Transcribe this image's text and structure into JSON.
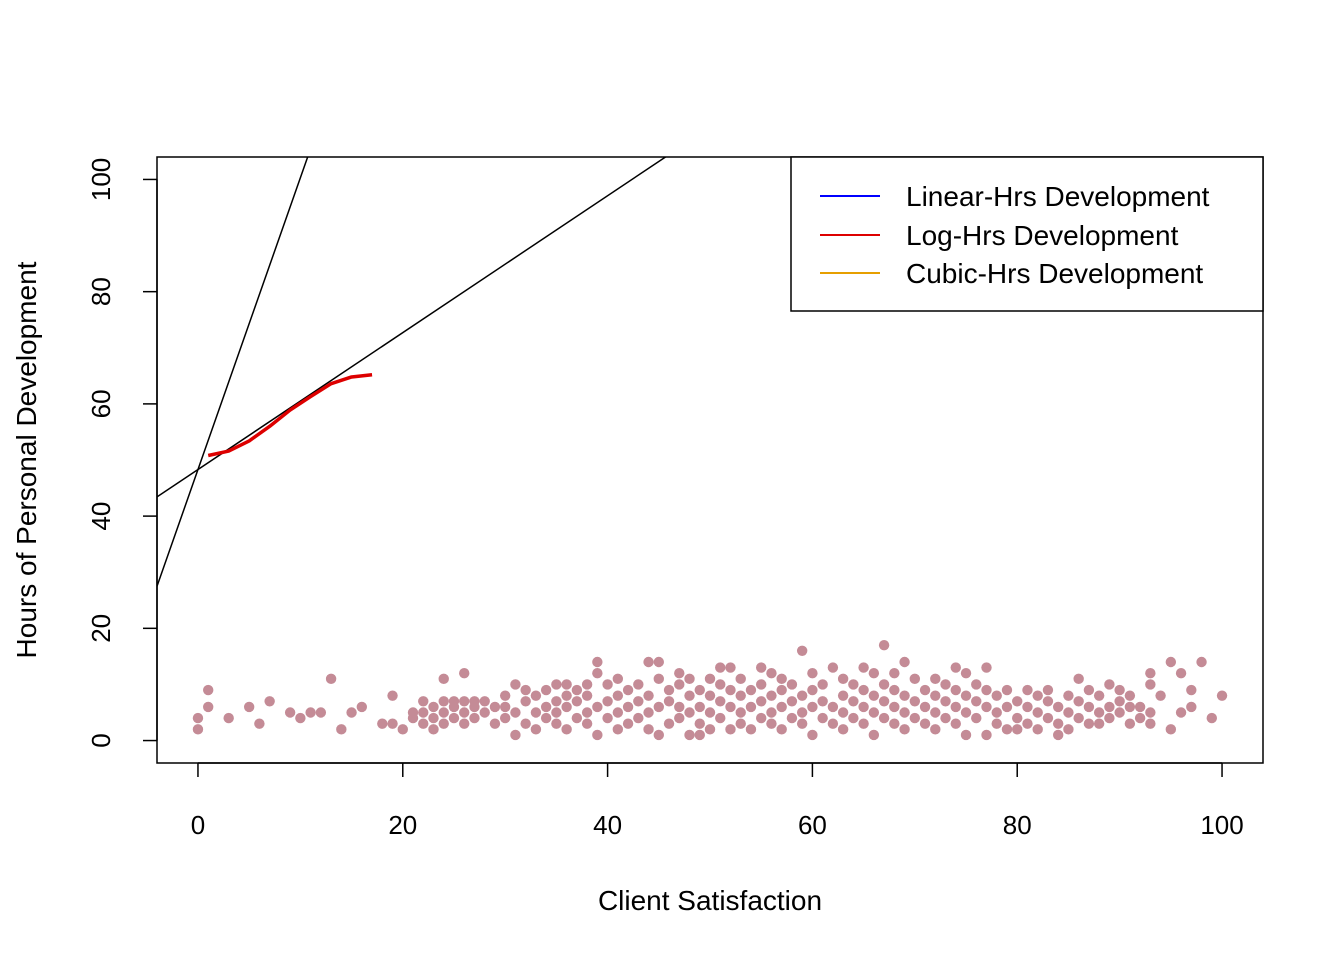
{
  "chart_data": {
    "type": "scatter",
    "xlabel": "Client Satisfaction",
    "ylabel": "Hours of Personal Development",
    "xlim": [
      -4,
      104
    ],
    "ylim": [
      -4,
      104
    ],
    "xticks": [
      0,
      20,
      40,
      60,
      80,
      100
    ],
    "yticks": [
      0,
      20,
      40,
      60,
      80,
      100
    ],
    "grid": false,
    "point_color": "#c48b96",
    "points_note": "dense cloud of several hundred observations; representative sample below",
    "points": [
      [
        0,
        2
      ],
      [
        0,
        4
      ],
      [
        1,
        6
      ],
      [
        1,
        9
      ],
      [
        3,
        4
      ],
      [
        5,
        6
      ],
      [
        6,
        3
      ],
      [
        7,
        7
      ],
      [
        9,
        5
      ],
      [
        10,
        4
      ],
      [
        11,
        5
      ],
      [
        12,
        5
      ],
      [
        13,
        11
      ],
      [
        14,
        2
      ],
      [
        15,
        5
      ],
      [
        16,
        6
      ],
      [
        18,
        3
      ],
      [
        19,
        3
      ],
      [
        19,
        8
      ],
      [
        20,
        2
      ],
      [
        21,
        4
      ],
      [
        21,
        5
      ],
      [
        22,
        3
      ],
      [
        22,
        5
      ],
      [
        22,
        7
      ],
      [
        23,
        2
      ],
      [
        23,
        4
      ],
      [
        23,
        6
      ],
      [
        24,
        3
      ],
      [
        24,
        5
      ],
      [
        24,
        7
      ],
      [
        24,
        11
      ],
      [
        25,
        4
      ],
      [
        25,
        6
      ],
      [
        25,
        7
      ],
      [
        26,
        3
      ],
      [
        26,
        5
      ],
      [
        26,
        7
      ],
      [
        26,
        12
      ],
      [
        27,
        4
      ],
      [
        27,
        6
      ],
      [
        27,
        7
      ],
      [
        28,
        5
      ],
      [
        28,
        7
      ],
      [
        29,
        3
      ],
      [
        29,
        6
      ],
      [
        30,
        4
      ],
      [
        30,
        6
      ],
      [
        30,
        8
      ],
      [
        31,
        1
      ],
      [
        31,
        5
      ],
      [
        31,
        10
      ],
      [
        32,
        3
      ],
      [
        32,
        7
      ],
      [
        32,
        9
      ],
      [
        33,
        2
      ],
      [
        33,
        5
      ],
      [
        33,
        8
      ],
      [
        34,
        4
      ],
      [
        34,
        6
      ],
      [
        34,
        9
      ],
      [
        35,
        3
      ],
      [
        35,
        5
      ],
      [
        35,
        7
      ],
      [
        35,
        10
      ],
      [
        36,
        2
      ],
      [
        36,
        6
      ],
      [
        36,
        8
      ],
      [
        36,
        10
      ],
      [
        37,
        4
      ],
      [
        37,
        7
      ],
      [
        37,
        9
      ],
      [
        38,
        3
      ],
      [
        38,
        5
      ],
      [
        38,
        8
      ],
      [
        38,
        10
      ],
      [
        39,
        1
      ],
      [
        39,
        6
      ],
      [
        39,
        12
      ],
      [
        39,
        14
      ],
      [
        40,
        4
      ],
      [
        40,
        7
      ],
      [
        40,
        10
      ],
      [
        41,
        2
      ],
      [
        41,
        5
      ],
      [
        41,
        8
      ],
      [
        41,
        11
      ],
      [
        42,
        3
      ],
      [
        42,
        6
      ],
      [
        42,
        9
      ],
      [
        43,
        4
      ],
      [
        43,
        7
      ],
      [
        43,
        10
      ],
      [
        44,
        2
      ],
      [
        44,
        5
      ],
      [
        44,
        8
      ],
      [
        44,
        14
      ],
      [
        45,
        1
      ],
      [
        45,
        6
      ],
      [
        45,
        11
      ],
      [
        45,
        14
      ],
      [
        46,
        3
      ],
      [
        46,
        7
      ],
      [
        46,
        9
      ],
      [
        47,
        4
      ],
      [
        47,
        6
      ],
      [
        47,
        10
      ],
      [
        47,
        12
      ],
      [
        48,
        1
      ],
      [
        48,
        5
      ],
      [
        48,
        8
      ],
      [
        48,
        11
      ],
      [
        49,
        1
      ],
      [
        49,
        3
      ],
      [
        49,
        6
      ],
      [
        49,
        9
      ],
      [
        50,
        2
      ],
      [
        50,
        5
      ],
      [
        50,
        8
      ],
      [
        50,
        11
      ],
      [
        51,
        4
      ],
      [
        51,
        7
      ],
      [
        51,
        10
      ],
      [
        51,
        13
      ],
      [
        52,
        2
      ],
      [
        52,
        6
      ],
      [
        52,
        9
      ],
      [
        52,
        13
      ],
      [
        53,
        3
      ],
      [
        53,
        5
      ],
      [
        53,
        8
      ],
      [
        53,
        11
      ],
      [
        54,
        2
      ],
      [
        54,
        6
      ],
      [
        54,
        9
      ],
      [
        55,
        4
      ],
      [
        55,
        7
      ],
      [
        55,
        10
      ],
      [
        55,
        13
      ],
      [
        56,
        3
      ],
      [
        56,
        5
      ],
      [
        56,
        8
      ],
      [
        56,
        12
      ],
      [
        57,
        2
      ],
      [
        57,
        6
      ],
      [
        57,
        9
      ],
      [
        57,
        11
      ],
      [
        58,
        4
      ],
      [
        58,
        7
      ],
      [
        58,
        10
      ],
      [
        59,
        3
      ],
      [
        59,
        5
      ],
      [
        59,
        8
      ],
      [
        59,
        16
      ],
      [
        60,
        1
      ],
      [
        60,
        6
      ],
      [
        60,
        9
      ],
      [
        60,
        12
      ],
      [
        61,
        4
      ],
      [
        61,
        7
      ],
      [
        61,
        10
      ],
      [
        62,
        3
      ],
      [
        62,
        6
      ],
      [
        62,
        13
      ],
      [
        63,
        2
      ],
      [
        63,
        5
      ],
      [
        63,
        8
      ],
      [
        63,
        11
      ],
      [
        64,
        4
      ],
      [
        64,
        7
      ],
      [
        64,
        10
      ],
      [
        65,
        3
      ],
      [
        65,
        6
      ],
      [
        65,
        9
      ],
      [
        65,
        13
      ],
      [
        66,
        1
      ],
      [
        66,
        5
      ],
      [
        66,
        8
      ],
      [
        66,
        12
      ],
      [
        67,
        4
      ],
      [
        67,
        7
      ],
      [
        67,
        10
      ],
      [
        67,
        17
      ],
      [
        68,
        3
      ],
      [
        68,
        6
      ],
      [
        68,
        9
      ],
      [
        68,
        12
      ],
      [
        69,
        2
      ],
      [
        69,
        5
      ],
      [
        69,
        8
      ],
      [
        69,
        14
      ],
      [
        70,
        4
      ],
      [
        70,
        7
      ],
      [
        70,
        11
      ],
      [
        71,
        3
      ],
      [
        71,
        6
      ],
      [
        71,
        9
      ],
      [
        72,
        2
      ],
      [
        72,
        5
      ],
      [
        72,
        8
      ],
      [
        72,
        11
      ],
      [
        73,
        4
      ],
      [
        73,
        7
      ],
      [
        73,
        10
      ],
      [
        74,
        3
      ],
      [
        74,
        6
      ],
      [
        74,
        9
      ],
      [
        74,
        13
      ],
      [
        75,
        1
      ],
      [
        75,
        5
      ],
      [
        75,
        8
      ],
      [
        75,
        12
      ],
      [
        76,
        4
      ],
      [
        76,
        7
      ],
      [
        76,
        10
      ],
      [
        77,
        1
      ],
      [
        77,
        6
      ],
      [
        77,
        9
      ],
      [
        77,
        13
      ],
      [
        78,
        3
      ],
      [
        78,
        5
      ],
      [
        78,
        8
      ],
      [
        79,
        2
      ],
      [
        79,
        6
      ],
      [
        79,
        9
      ],
      [
        80,
        2
      ],
      [
        80,
        4
      ],
      [
        80,
        7
      ],
      [
        81,
        3
      ],
      [
        81,
        6
      ],
      [
        81,
        9
      ],
      [
        82,
        2
      ],
      [
        82,
        5
      ],
      [
        82,
        8
      ],
      [
        83,
        4
      ],
      [
        83,
        7
      ],
      [
        83,
        9
      ],
      [
        84,
        1
      ],
      [
        84,
        3
      ],
      [
        84,
        6
      ],
      [
        85,
        2
      ],
      [
        85,
        5
      ],
      [
        85,
        8
      ],
      [
        86,
        4
      ],
      [
        86,
        7
      ],
      [
        86,
        11
      ],
      [
        87,
        3
      ],
      [
        87,
        6
      ],
      [
        87,
        9
      ],
      [
        88,
        3
      ],
      [
        88,
        5
      ],
      [
        88,
        8
      ],
      [
        89,
        4
      ],
      [
        89,
        6
      ],
      [
        89,
        10
      ],
      [
        90,
        5
      ],
      [
        90,
        7
      ],
      [
        90,
        9
      ],
      [
        91,
        3
      ],
      [
        91,
        6
      ],
      [
        91,
        8
      ],
      [
        92,
        4
      ],
      [
        92,
        6
      ],
      [
        93,
        3
      ],
      [
        93,
        5
      ],
      [
        93,
        10
      ],
      [
        93,
        12
      ],
      [
        94,
        8
      ],
      [
        95,
        2
      ],
      [
        95,
        14
      ],
      [
        96,
        5
      ],
      [
        96,
        12
      ],
      [
        97,
        6
      ],
      [
        97,
        9
      ],
      [
        98,
        14
      ],
      [
        99,
        4
      ],
      [
        100,
        8
      ]
    ],
    "lines": [
      {
        "name": "Linear-Hrs Development",
        "color": "#0000ff",
        "intercept": 48.3,
        "slope": 1.22
      },
      {
        "name": "Log-Hrs Development",
        "color": "#dd0000",
        "x": [
          1,
          3,
          5,
          7,
          9,
          11,
          13,
          15,
          17
        ],
        "y": [
          50.8,
          51.6,
          53.4,
          56.0,
          58.9,
          61.3,
          63.6,
          64.8,
          65.2
        ]
      },
      {
        "name": "Cubic-Hrs Development",
        "color": "#e69f00",
        "intercept": 48.3,
        "slope": 5.2
      }
    ],
    "legend": {
      "position": "top-right",
      "entries": [
        {
          "label": "Linear-Hrs Development",
          "color": "#0000ff"
        },
        {
          "label": "Log-Hrs Development",
          "color": "#dd0000"
        },
        {
          "label": "Cubic-Hrs Development",
          "color": "#e69f00"
        }
      ]
    }
  }
}
